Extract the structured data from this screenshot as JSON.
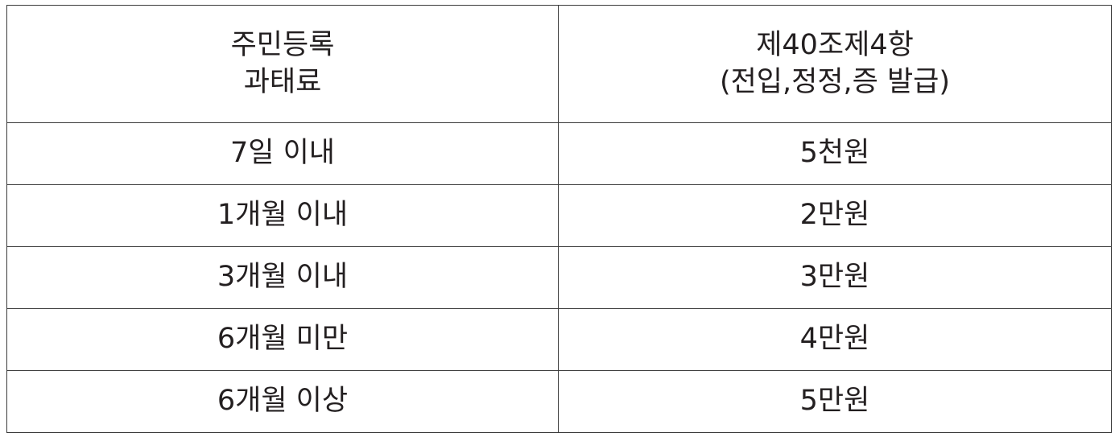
{
  "table": {
    "header": {
      "col1": [
        "주민등록",
        "과태료"
      ],
      "col2": [
        "제40조제4항",
        "(전입,정정,증 발급)"
      ]
    },
    "rows": [
      {
        "period": "7일 이내",
        "fee": "5천원"
      },
      {
        "period": "1개월 이내",
        "fee": "2만원"
      },
      {
        "period": "3개월 이내",
        "fee": "3만원"
      },
      {
        "period": "6개월 미만",
        "fee": "4만원"
      },
      {
        "period": "6개월 이상",
        "fee": "5만원"
      }
    ]
  }
}
